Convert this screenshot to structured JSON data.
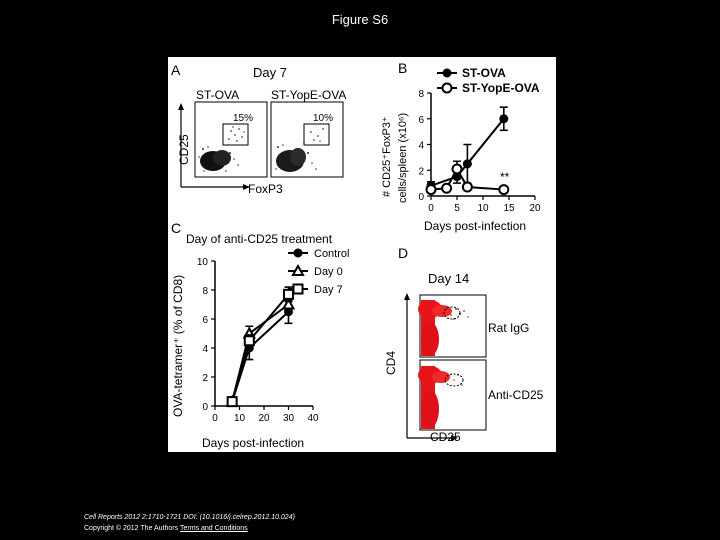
{
  "slide": {
    "title": "Figure S6",
    "footer_citation": "Cell Reports 2012 2:1710-1721 DOI: (10.1016/j.celrep.2012.10.024)",
    "footer_copyright": "Copyright © 2012 The Authors",
    "footer_link": "Terms and Conditions"
  },
  "panelA": {
    "letter": "A",
    "title": "Day 7",
    "plots": [
      {
        "label": "ST-OVA",
        "gate_percent": "15%"
      },
      {
        "label": "ST-YopE-OVA",
        "gate_percent": "10%"
      }
    ],
    "xlabel": "FoxP3",
    "ylabel": "CD25"
  },
  "panelD": {
    "letter": "D",
    "title": "Day 14",
    "rows": [
      {
        "label": "Rat IgG"
      },
      {
        "label": "Anti-CD25"
      }
    ],
    "xlabel": "CD25",
    "ylabel": "CD4"
  },
  "chart_data": [
    {
      "panel": "B",
      "type": "line",
      "legend": [
        "ST-OVA",
        "ST-YopE-OVA"
      ],
      "ylabel": "# CD25⁺FoxP3⁺ cells/spleen (x10⁶)",
      "xlabel": "Days post-infection",
      "xlim": [
        0,
        20
      ],
      "ylim": [
        0,
        8
      ],
      "xticks": [
        "0",
        "5",
        "10",
        "15",
        "20"
      ],
      "yticks": [
        "0",
        "2",
        "4",
        "6",
        "8"
      ],
      "series": [
        {
          "name": "ST-OVA",
          "marker": "filled-circle",
          "x": [
            0,
            5,
            7,
            14
          ],
          "y": [
            0.8,
            1.5,
            2.5,
            6.0
          ],
          "err": [
            0.3,
            0.5,
            1.5,
            0.9
          ]
        },
        {
          "name": "ST-YopE-OVA",
          "marker": "open-circle",
          "x": [
            0,
            3,
            5,
            7,
            14
          ],
          "y": [
            0.5,
            0.6,
            2.1,
            0.7,
            0.5
          ],
          "err": [
            0.2,
            0.2,
            0.6,
            0.2,
            0.1
          ]
        }
      ],
      "annotation": "**"
    },
    {
      "panel": "C",
      "type": "line",
      "legend_title": "Day of anti-CD25 treatment",
      "legend": [
        "Control",
        "Day 0",
        "Day 7"
      ],
      "ylabel": "OVA-tetramer⁺ (% of CD8)",
      "xlabel": "Days post-infection",
      "xlim": [
        0,
        40
      ],
      "ylim": [
        0,
        10
      ],
      "xticks": [
        "0",
        "10",
        "20",
        "30",
        "40"
      ],
      "yticks": [
        "0",
        "2",
        "4",
        "6",
        "8",
        "10"
      ],
      "series": [
        {
          "name": "Control",
          "marker": "filled-circle",
          "x": [
            7,
            14,
            30
          ],
          "y": [
            0.3,
            4.0,
            6.5
          ],
          "err": [
            0.1,
            0.8,
            0.8
          ]
        },
        {
          "name": "Day 0",
          "marker": "open-triangle",
          "x": [
            7,
            14,
            30
          ],
          "y": [
            0.3,
            5.0,
            7.0
          ],
          "err": [
            0.1,
            0.5,
            0.6
          ]
        },
        {
          "name": "Day 7",
          "marker": "open-square",
          "x": [
            7,
            14,
            30
          ],
          "y": [
            0.3,
            4.5,
            7.7
          ],
          "err": [
            0.1,
            0.4,
            0.5
          ]
        }
      ]
    }
  ]
}
